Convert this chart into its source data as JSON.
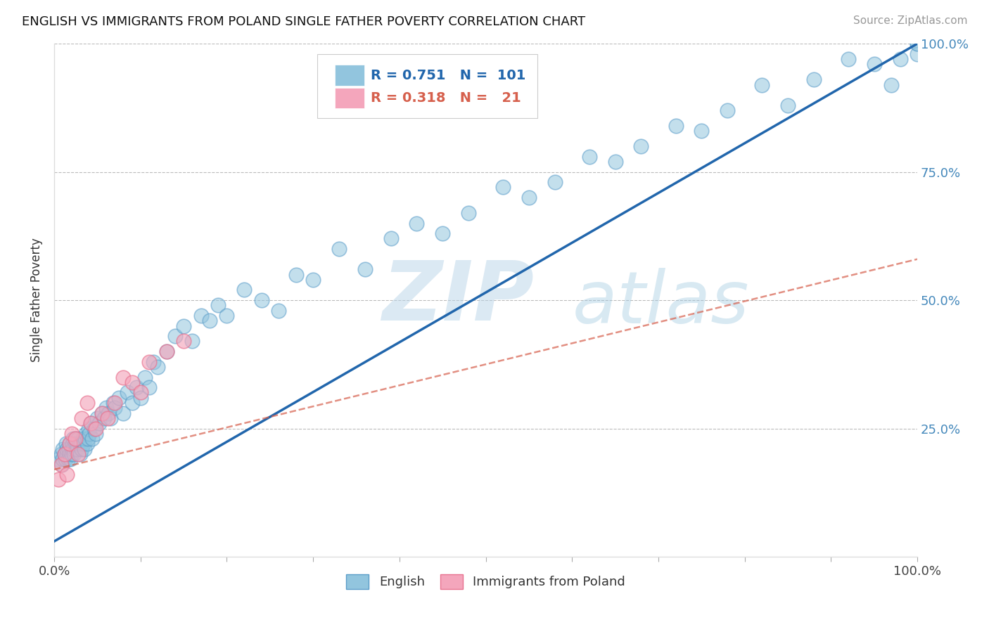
{
  "title": "ENGLISH VS IMMIGRANTS FROM POLAND SINGLE FATHER POVERTY CORRELATION CHART",
  "source": "Source: ZipAtlas.com",
  "ylabel": "Single Father Poverty",
  "xlim": [
    0,
    1.0
  ],
  "ylim": [
    0,
    1.0
  ],
  "xtick_positions": [
    0,
    0.1,
    0.2,
    0.3,
    0.4,
    0.5,
    0.6,
    0.7,
    0.8,
    0.9,
    1.0
  ],
  "xticklabels": [
    "0.0%",
    "",
    "",
    "",
    "",
    "",
    "",
    "",
    "",
    "",
    "100.0%"
  ],
  "ytick_positions": [
    0,
    0.25,
    0.5,
    0.75,
    1.0
  ],
  "yticklabels_right": [
    "",
    "25.0%",
    "50.0%",
    "75.0%",
    "100.0%"
  ],
  "english_R": 0.751,
  "english_N": 101,
  "poland_R": 0.318,
  "poland_N": 21,
  "english_color": "#92c5de",
  "england_edge_color": "#5b9dc9",
  "poland_color": "#f4a6bc",
  "poland_edge_color": "#e8728f",
  "english_line_color": "#2166ac",
  "poland_line_color": "#d6604d",
  "watermark_color": "#c8dff0",
  "background_color": "#ffffff",
  "title_fontsize": 13,
  "tick_fontsize": 13,
  "legend_fontsize": 14,
  "english_x": [
    0.005,
    0.008,
    0.009,
    0.01,
    0.01,
    0.012,
    0.013,
    0.014,
    0.015,
    0.015,
    0.016,
    0.017,
    0.018,
    0.018,
    0.019,
    0.02,
    0.02,
    0.021,
    0.022,
    0.022,
    0.023,
    0.024,
    0.025,
    0.025,
    0.026,
    0.027,
    0.028,
    0.029,
    0.03,
    0.031,
    0.032,
    0.033,
    0.034,
    0.035,
    0.036,
    0.037,
    0.038,
    0.039,
    0.04,
    0.041,
    0.042,
    0.044,
    0.046,
    0.048,
    0.05,
    0.052,
    0.055,
    0.058,
    0.06,
    0.063,
    0.065,
    0.068,
    0.07,
    0.075,
    0.08,
    0.085,
    0.09,
    0.095,
    0.1,
    0.105,
    0.11,
    0.115,
    0.12,
    0.13,
    0.14,
    0.15,
    0.16,
    0.17,
    0.18,
    0.19,
    0.2,
    0.22,
    0.24,
    0.26,
    0.28,
    0.3,
    0.33,
    0.36,
    0.39,
    0.42,
    0.45,
    0.48,
    0.52,
    0.55,
    0.58,
    0.62,
    0.65,
    0.68,
    0.72,
    0.75,
    0.78,
    0.82,
    0.85,
    0.88,
    0.92,
    0.95,
    0.97,
    0.98,
    1.0,
    1.0,
    1.0
  ],
  "english_y": [
    0.19,
    0.2,
    0.18,
    0.21,
    0.19,
    0.2,
    0.19,
    0.22,
    0.2,
    0.21,
    0.19,
    0.21,
    0.2,
    0.22,
    0.19,
    0.21,
    0.2,
    0.22,
    0.21,
    0.23,
    0.2,
    0.22,
    0.21,
    0.23,
    0.22,
    0.21,
    0.23,
    0.22,
    0.2,
    0.22,
    0.21,
    0.23,
    0.22,
    0.21,
    0.23,
    0.24,
    0.22,
    0.23,
    0.25,
    0.24,
    0.26,
    0.23,
    0.25,
    0.24,
    0.27,
    0.26,
    0.28,
    0.27,
    0.29,
    0.28,
    0.27,
    0.3,
    0.29,
    0.31,
    0.28,
    0.32,
    0.3,
    0.33,
    0.31,
    0.35,
    0.33,
    0.38,
    0.37,
    0.4,
    0.43,
    0.45,
    0.42,
    0.47,
    0.46,
    0.49,
    0.47,
    0.52,
    0.5,
    0.48,
    0.55,
    0.54,
    0.6,
    0.56,
    0.62,
    0.65,
    0.63,
    0.67,
    0.72,
    0.7,
    0.73,
    0.78,
    0.77,
    0.8,
    0.84,
    0.83,
    0.87,
    0.92,
    0.88,
    0.93,
    0.97,
    0.96,
    0.92,
    0.97,
    1.0,
    0.98,
    1.0
  ],
  "poland_x": [
    0.005,
    0.008,
    0.012,
    0.015,
    0.018,
    0.02,
    0.024,
    0.028,
    0.032,
    0.038,
    0.042,
    0.048,
    0.055,
    0.062,
    0.07,
    0.08,
    0.09,
    0.1,
    0.11,
    0.13,
    0.15
  ],
  "poland_y": [
    0.15,
    0.18,
    0.2,
    0.16,
    0.22,
    0.24,
    0.23,
    0.2,
    0.27,
    0.3,
    0.26,
    0.25,
    0.28,
    0.27,
    0.3,
    0.35,
    0.34,
    0.32,
    0.38,
    0.4,
    0.42
  ],
  "eng_line_x0": 0.0,
  "eng_line_x1": 1.0,
  "eng_line_y0": 0.03,
  "eng_line_y1": 1.0,
  "pol_line_x0": 0.0,
  "pol_line_x1": 1.0,
  "pol_line_y0": 0.17,
  "pol_line_y1": 0.58
}
